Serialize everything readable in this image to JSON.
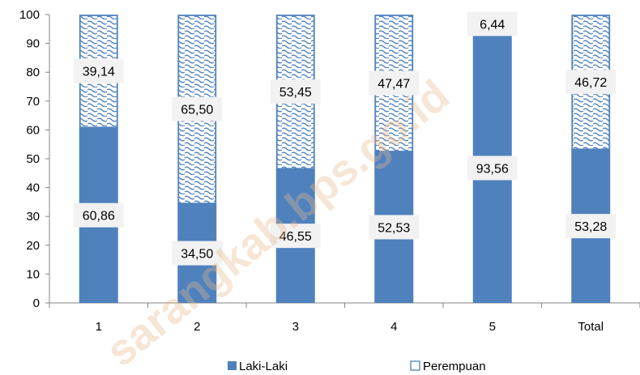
{
  "chart_data": {
    "type": "bar",
    "stacked": true,
    "categories": [
      "1",
      "2",
      "3",
      "4",
      "5",
      "Total"
    ],
    "series": [
      {
        "name": "Laki-Laki",
        "values": [
          60.86,
          34.5,
          46.55,
          52.53,
          93.56,
          53.28
        ],
        "labels": [
          "60,86",
          "34,50",
          "46,55",
          "52,53",
          "93,56",
          "53,28"
        ],
        "color": "#4f81bd",
        "fill": "solid"
      },
      {
        "name": "Perempuan",
        "values": [
          39.14,
          65.5,
          53.45,
          47.47,
          6.44,
          46.72
        ],
        "labels": [
          "39,14",
          "65,50",
          "53,45",
          "47,47",
          "6,44",
          "46,72"
        ],
        "color": "#4f81bd",
        "fill": "pattern"
      }
    ],
    "ylim": [
      0,
      100
    ],
    "yticks": [
      "0",
      "10",
      "20",
      "30",
      "40",
      "50",
      "60",
      "70",
      "80",
      "90",
      "100"
    ],
    "grid": false,
    "legend": "bottom"
  },
  "watermark": "sarangkab.bps.go.id"
}
